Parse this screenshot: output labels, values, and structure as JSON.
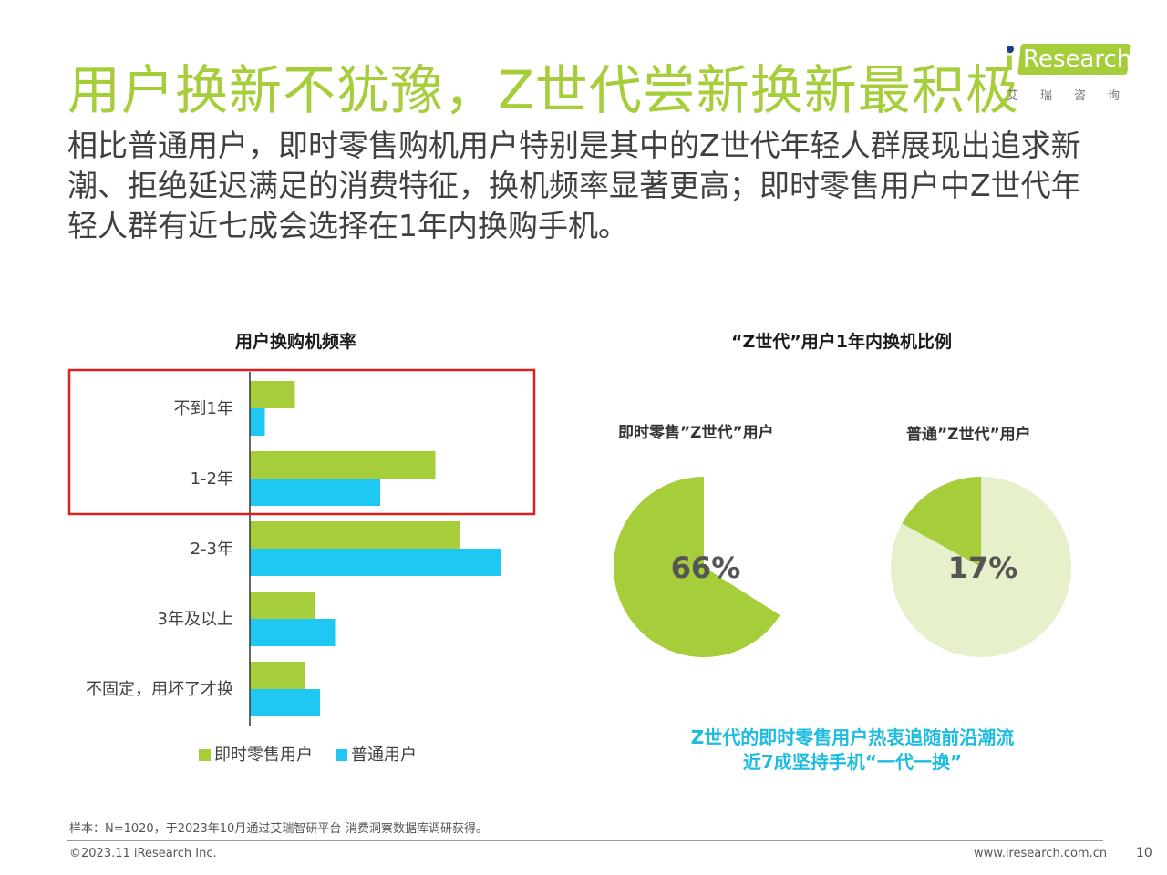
{
  "header": {
    "title": "用户换新不犹豫，Z世代尝新换新最积极",
    "subtitle": "相比普通用户，即时零售购机用户特别是其中的Z世代年轻人群展现出追求新潮、拒绝延迟满足的消费特征，换机频率显著更高；即时零售用户中Z世代年轻人群有近七成会选择在1年内换购手机。"
  },
  "logo": {
    "brand_i": "i",
    "brand_text": "Research",
    "brand_cn": "艾瑞咨询"
  },
  "colors": {
    "green": "#a6cd3a",
    "blue": "#1ec8f2",
    "light_green": "#e6f0cb",
    "highlight": "#e02020",
    "note": "#1ebcdf"
  },
  "chart_data": [
    {
      "type": "bar",
      "orientation": "horizontal",
      "title": "用户换购机频率",
      "categories": [
        "不到1年",
        "1-2年",
        "2-3年",
        "3年及以上",
        "不固定，用坏了才换"
      ],
      "series": [
        {
          "name": "即时零售用户",
          "values": [
            9,
            37,
            42,
            13,
            11
          ]
        },
        {
          "name": "普通用户",
          "values": [
            3,
            26,
            50,
            17,
            14
          ]
        }
      ],
      "grid": false,
      "legend": "bottom",
      "highlighted_categories": [
        "不到1年",
        "1-2年"
      ]
    },
    {
      "type": "pie",
      "title": "“Z世代”用户1年内换机比例",
      "pies": [
        {
          "label": "即时零售”Z世代”用户",
          "value": 66,
          "value_label": "66%"
        },
        {
          "label": "普通”Z世代”用户",
          "value": 17,
          "value_label": "17%"
        }
      ]
    }
  ],
  "note": {
    "line1": "Z世代的即时零售用户热衷追随前沿潮流",
    "line2": "近7成坚持手机“一代一换”"
  },
  "footer": {
    "sample": "样本：N=1020，于2023年10月通过艾瑞智研平台-消费洞察数据库调研获得。",
    "copyright": "©2023.11 iResearch Inc.",
    "site": "www.iresearch.com.cn",
    "page": "10"
  }
}
